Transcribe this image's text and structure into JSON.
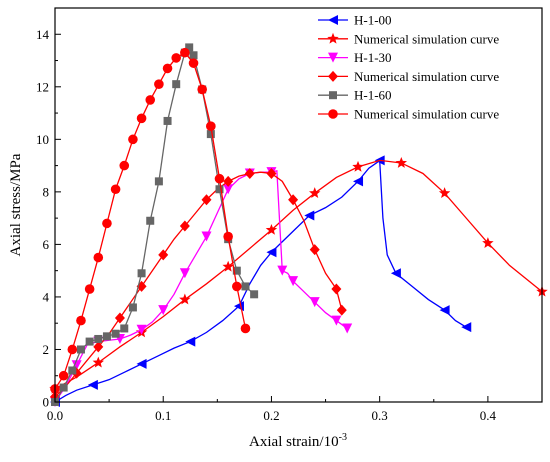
{
  "chart_data": {
    "type": "line",
    "xlabel": "Axial strain/10",
    "xlabel_exponent": "-3",
    "ylabel": "Axial stress/MPa",
    "xlim": [
      0,
      0.45
    ],
    "ylim": [
      0,
      15
    ],
    "x_ticks": [
      0.0,
      0.1,
      0.2,
      0.3,
      0.4
    ],
    "x_tick_labels": [
      "0.0",
      "0.1",
      "0.2",
      "0.3",
      "0.4"
    ],
    "y_ticks": [
      0,
      2,
      4,
      6,
      8,
      10,
      12,
      14
    ],
    "y_tick_labels": [
      "0",
      "2",
      "4",
      "6",
      "8",
      "10",
      "12",
      "14"
    ],
    "grid": false,
    "legend_position": "top-right",
    "series": [
      {
        "name": "H-1-00",
        "color": "#0000ff",
        "marker": "triangle-left",
        "x": [
          0.0,
          0.01,
          0.02,
          0.035,
          0.05,
          0.065,
          0.08,
          0.095,
          0.11,
          0.125,
          0.14,
          0.155,
          0.17,
          0.18,
          0.19,
          0.2,
          0.21,
          0.22,
          0.235,
          0.25,
          0.265,
          0.28,
          0.29,
          0.297,
          0.3,
          0.303,
          0.307,
          0.315,
          0.33,
          0.345,
          0.36,
          0.37,
          0.38
        ],
        "y": [
          0.0,
          0.25,
          0.45,
          0.65,
          0.85,
          1.15,
          1.45,
          1.75,
          2.05,
          2.3,
          2.65,
          3.1,
          3.65,
          4.5,
          5.2,
          5.7,
          6.1,
          6.5,
          7.1,
          7.4,
          7.8,
          8.4,
          8.9,
          9.1,
          9.2,
          7.0,
          5.6,
          4.9,
          4.4,
          3.9,
          3.5,
          3.1,
          2.85
        ],
        "marker_every": 3
      },
      {
        "name": "Numerical simulation curve",
        "color": "#ff0000",
        "marker": "star",
        "x": [
          0.0,
          0.02,
          0.04,
          0.06,
          0.08,
          0.1,
          0.12,
          0.14,
          0.16,
          0.18,
          0.2,
          0.22,
          0.24,
          0.26,
          0.28,
          0.3,
          0.32,
          0.34,
          0.36,
          0.38,
          0.4,
          0.42,
          0.45
        ],
        "y": [
          0.5,
          0.95,
          1.5,
          2.1,
          2.65,
          3.25,
          3.9,
          4.5,
          5.15,
          5.85,
          6.55,
          7.3,
          7.95,
          8.55,
          8.95,
          9.2,
          9.1,
          8.7,
          7.95,
          7.0,
          6.05,
          5.2,
          4.2
        ],
        "marker_every": 2
      },
      {
        "name": "H-1-30",
        "color": "#ff00ff",
        "marker": "triangle-down",
        "x": [
          0.0,
          0.01,
          0.02,
          0.03,
          0.04,
          0.05,
          0.06,
          0.07,
          0.08,
          0.09,
          0.1,
          0.11,
          0.12,
          0.13,
          0.14,
          0.15,
          0.16,
          0.17,
          0.18,
          0.19,
          0.2,
          0.205,
          0.21,
          0.215,
          0.22,
          0.23,
          0.24,
          0.25,
          0.26,
          0.27
        ],
        "y": [
          0.0,
          0.6,
          1.4,
          2.2,
          2.3,
          2.35,
          2.4,
          2.55,
          2.75,
          3.05,
          3.5,
          4.1,
          4.9,
          5.6,
          6.3,
          7.2,
          8.1,
          8.5,
          8.7,
          8.75,
          8.75,
          8.8,
          5.0,
          4.9,
          4.6,
          4.2,
          3.8,
          3.4,
          3.1,
          2.8
        ],
        "marker_every": 2
      },
      {
        "name": "Numerical simulation curve",
        "color": "#ff0000",
        "marker": "diamond",
        "x": [
          0.0,
          0.01,
          0.02,
          0.03,
          0.04,
          0.05,
          0.06,
          0.07,
          0.08,
          0.09,
          0.1,
          0.11,
          0.12,
          0.13,
          0.14,
          0.15,
          0.16,
          0.17,
          0.18,
          0.19,
          0.2,
          0.21,
          0.22,
          0.23,
          0.24,
          0.25,
          0.26,
          0.265
        ],
        "y": [
          0.2,
          0.6,
          1.1,
          1.6,
          2.1,
          2.6,
          3.2,
          3.8,
          4.4,
          5.0,
          5.6,
          6.2,
          6.7,
          7.2,
          7.7,
          8.1,
          8.4,
          8.6,
          8.7,
          8.75,
          8.7,
          8.4,
          7.7,
          6.9,
          5.8,
          4.9,
          4.3,
          3.5
        ],
        "marker_every": 2
      },
      {
        "name": "H-1-60",
        "color": "#666666",
        "marker": "square",
        "x": [
          0.0,
          0.008,
          0.016,
          0.024,
          0.032,
          0.04,
          0.048,
          0.056,
          0.064,
          0.072,
          0.08,
          0.088,
          0.096,
          0.104,
          0.112,
          0.12,
          0.124,
          0.128,
          0.136,
          0.144,
          0.152,
          0.16,
          0.168,
          0.176,
          0.184
        ],
        "y": [
          0.0,
          0.55,
          1.2,
          2.0,
          2.3,
          2.4,
          2.5,
          2.6,
          2.8,
          3.6,
          4.9,
          6.9,
          8.4,
          10.7,
          12.1,
          13.3,
          13.5,
          13.2,
          11.9,
          10.2,
          8.1,
          6.2,
          5.0,
          4.4,
          4.1
        ],
        "marker_every": 1
      },
      {
        "name": "Numerical simulation curve",
        "color": "#ff0000",
        "marker": "circle",
        "x": [
          0.0,
          0.008,
          0.016,
          0.024,
          0.032,
          0.04,
          0.048,
          0.056,
          0.064,
          0.072,
          0.08,
          0.088,
          0.096,
          0.104,
          0.112,
          0.12,
          0.128,
          0.136,
          0.144,
          0.152,
          0.16,
          0.168,
          0.176
        ],
        "y": [
          0.5,
          1.0,
          2.0,
          3.1,
          4.3,
          5.5,
          6.8,
          8.1,
          9.0,
          10.0,
          10.8,
          11.5,
          12.1,
          12.7,
          13.1,
          13.3,
          12.9,
          11.9,
          10.5,
          8.5,
          6.3,
          4.4,
          2.8
        ],
        "marker_every": 1
      }
    ]
  }
}
